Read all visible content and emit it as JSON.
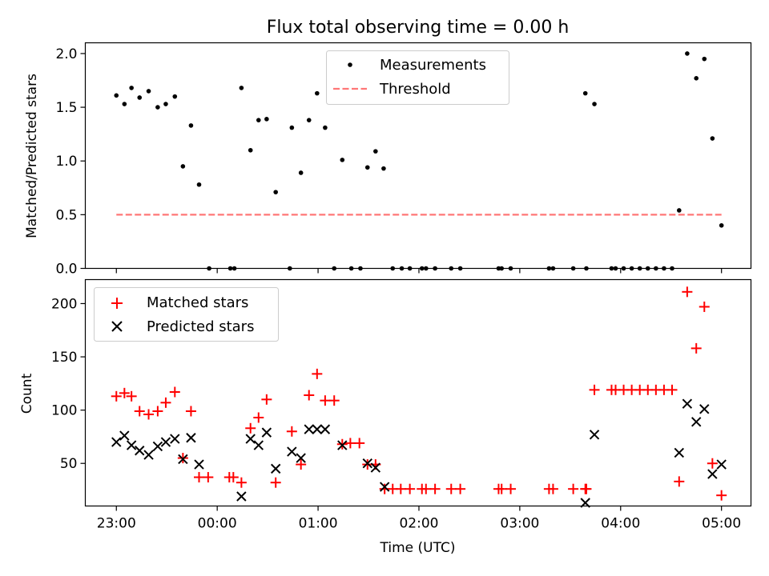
{
  "chart_data": [
    {
      "type": "scatter",
      "title": "Flux total observing time = 0.00 h",
      "ylabel": "Matched/Predicted stars",
      "xlim_hours": [
        22.6921,
        29.2924
      ],
      "ylim": [
        0,
        2.1
      ],
      "yticks": [
        "0.0",
        "0.5",
        "1.0",
        "1.5",
        "2.0"
      ],
      "grid": false,
      "legend_position": "upper-center",
      "legend": [
        "Measurements",
        "Threshold"
      ],
      "threshold": {
        "value": 0.5,
        "x_range_hours": [
          23.0,
          29.0
        ],
        "color": "#ff7777",
        "style": "dashed"
      },
      "series": [
        {
          "name": "Measurements",
          "color": "#000000",
          "marker": "dot",
          "points": [
            [
              23.0,
              1.61
            ],
            [
              23.08,
              1.53
            ],
            [
              23.15,
              1.68
            ],
            [
              23.23,
              1.59
            ],
            [
              23.32,
              1.65
            ],
            [
              23.41,
              1.5
            ],
            [
              23.49,
              1.53
            ],
            [
              23.58,
              1.6
            ],
            [
              23.66,
              0.95
            ],
            [
              23.74,
              1.33
            ],
            [
              23.82,
              0.78
            ],
            [
              23.92,
              0.0
            ],
            [
              24.13,
              0.0
            ],
            [
              24.17,
              0.0
            ],
            [
              24.24,
              1.68
            ],
            [
              24.33,
              1.1
            ],
            [
              24.41,
              1.38
            ],
            [
              24.49,
              1.39
            ],
            [
              24.58,
              0.71
            ],
            [
              24.72,
              0.0
            ],
            [
              24.74,
              1.31
            ],
            [
              24.83,
              0.89
            ],
            [
              24.91,
              1.38
            ],
            [
              24.99,
              1.63
            ],
            [
              25.07,
              1.31
            ],
            [
              25.16,
              0.0
            ],
            [
              25.24,
              1.01
            ],
            [
              25.33,
              0.0
            ],
            [
              25.42,
              0.0
            ],
            [
              25.49,
              0.94
            ],
            [
              25.57,
              1.09
            ],
            [
              25.65,
              0.93
            ],
            [
              25.74,
              0.0
            ],
            [
              25.83,
              0.0
            ],
            [
              25.91,
              0.0
            ],
            [
              26.03,
              0.0
            ],
            [
              26.07,
              0.0
            ],
            [
              26.16,
              0.0
            ],
            [
              26.32,
              0.0
            ],
            [
              26.41,
              0.0
            ],
            [
              26.79,
              0.0
            ],
            [
              26.82,
              0.0
            ],
            [
              26.91,
              0.0
            ],
            [
              27.29,
              0.0
            ],
            [
              27.33,
              0.0
            ],
            [
              27.53,
              0.0
            ],
            [
              27.66,
              0.0
            ],
            [
              27.65,
              1.63
            ],
            [
              27.74,
              1.53
            ],
            [
              27.91,
              0.0
            ],
            [
              27.95,
              0.0
            ],
            [
              28.03,
              0.0
            ],
            [
              28.11,
              0.0
            ],
            [
              28.19,
              0.0
            ],
            [
              28.27,
              0.0
            ],
            [
              28.35,
              0.0
            ],
            [
              28.43,
              0.0
            ],
            [
              28.51,
              0.0
            ],
            [
              28.58,
              0.54
            ],
            [
              28.66,
              2.0
            ],
            [
              28.75,
              1.77
            ],
            [
              28.83,
              1.95
            ],
            [
              28.91,
              1.21
            ],
            [
              29.0,
              0.4
            ]
          ]
        }
      ]
    },
    {
      "type": "scatter",
      "xlabel": "Time (UTC)",
      "ylabel": "Count",
      "xlim_hours": [
        22.6921,
        29.2924
      ],
      "ylim": [
        10,
        222.5
      ],
      "yticks": [
        "50",
        "100",
        "150",
        "200"
      ],
      "xticks": [
        {
          "hour": 23,
          "label": "23:00"
        },
        {
          "hour": 24,
          "label": "00:00"
        },
        {
          "hour": 25,
          "label": "01:00"
        },
        {
          "hour": 26,
          "label": "02:00"
        },
        {
          "hour": 27,
          "label": "03:00"
        },
        {
          "hour": 28,
          "label": "04:00"
        },
        {
          "hour": 29,
          "label": "05:00"
        }
      ],
      "grid": false,
      "legend_position": "upper-left",
      "legend": [
        "Matched stars",
        "Predicted stars"
      ],
      "series": [
        {
          "name": "Matched stars",
          "color": "#ff0000",
          "marker": "plus",
          "points": [
            [
              23.0,
              113
            ],
            [
              23.08,
              116
            ],
            [
              23.15,
              113
            ],
            [
              23.23,
              99
            ],
            [
              23.32,
              96
            ],
            [
              23.41,
              99
            ],
            [
              23.49,
              107
            ],
            [
              23.58,
              117
            ],
            [
              23.66,
              55
            ],
            [
              23.74,
              99
            ],
            [
              23.82,
              37
            ],
            [
              23.91,
              37
            ],
            [
              24.12,
              37
            ],
            [
              24.16,
              37
            ],
            [
              24.24,
              32
            ],
            [
              24.33,
              83
            ],
            [
              24.41,
              93
            ],
            [
              24.49,
              110
            ],
            [
              24.58,
              32
            ],
            [
              24.74,
              80
            ],
            [
              24.83,
              49
            ],
            [
              24.91,
              114
            ],
            [
              24.99,
              134
            ],
            [
              25.07,
              109
            ],
            [
              25.16,
              109
            ],
            [
              25.24,
              68
            ],
            [
              25.32,
              69
            ],
            [
              25.41,
              69
            ],
            [
              25.49,
              49
            ],
            [
              25.57,
              49
            ],
            [
              25.66,
              26
            ],
            [
              25.74,
              26
            ],
            [
              25.82,
              26
            ],
            [
              25.91,
              26
            ],
            [
              26.03,
              26
            ],
            [
              26.07,
              26
            ],
            [
              26.16,
              26
            ],
            [
              26.32,
              26
            ],
            [
              26.41,
              26
            ],
            [
              26.79,
              26
            ],
            [
              26.82,
              26
            ],
            [
              26.91,
              26
            ],
            [
              27.29,
              26
            ],
            [
              27.33,
              26
            ],
            [
              27.53,
              26
            ],
            [
              27.65,
              26
            ],
            [
              27.66,
              26
            ],
            [
              27.74,
              119
            ],
            [
              27.91,
              119
            ],
            [
              27.95,
              119
            ],
            [
              28.03,
              119
            ],
            [
              28.11,
              119
            ],
            [
              28.19,
              119
            ],
            [
              28.27,
              119
            ],
            [
              28.35,
              119
            ],
            [
              28.43,
              119
            ],
            [
              28.51,
              119
            ],
            [
              28.58,
              33
            ],
            [
              28.66,
              211
            ],
            [
              28.75,
              158
            ],
            [
              28.83,
              197
            ],
            [
              28.91,
              50
            ],
            [
              29.0,
              20
            ]
          ]
        },
        {
          "name": "Predicted stars",
          "color": "#000000",
          "marker": "x",
          "points": [
            [
              23.0,
              70
            ],
            [
              23.08,
              76
            ],
            [
              23.15,
              67
            ],
            [
              23.23,
              62
            ],
            [
              23.32,
              58
            ],
            [
              23.41,
              66
            ],
            [
              23.49,
              70
            ],
            [
              23.58,
              73
            ],
            [
              23.66,
              54
            ],
            [
              23.74,
              74
            ],
            [
              23.82,
              49
            ],
            [
              24.24,
              19
            ],
            [
              24.33,
              73
            ],
            [
              24.41,
              67
            ],
            [
              24.49,
              79
            ],
            [
              24.58,
              45
            ],
            [
              24.74,
              61
            ],
            [
              24.83,
              55
            ],
            [
              24.91,
              82
            ],
            [
              24.99,
              82
            ],
            [
              25.07,
              82
            ],
            [
              25.24,
              67
            ],
            [
              25.49,
              50
            ],
            [
              25.57,
              46
            ],
            [
              25.66,
              28
            ],
            [
              27.65,
              13
            ],
            [
              27.74,
              77
            ],
            [
              28.58,
              60
            ],
            [
              28.66,
              106
            ],
            [
              28.75,
              89
            ],
            [
              28.83,
              101
            ],
            [
              28.91,
              40
            ],
            [
              29.0,
              49
            ]
          ]
        }
      ]
    }
  ]
}
